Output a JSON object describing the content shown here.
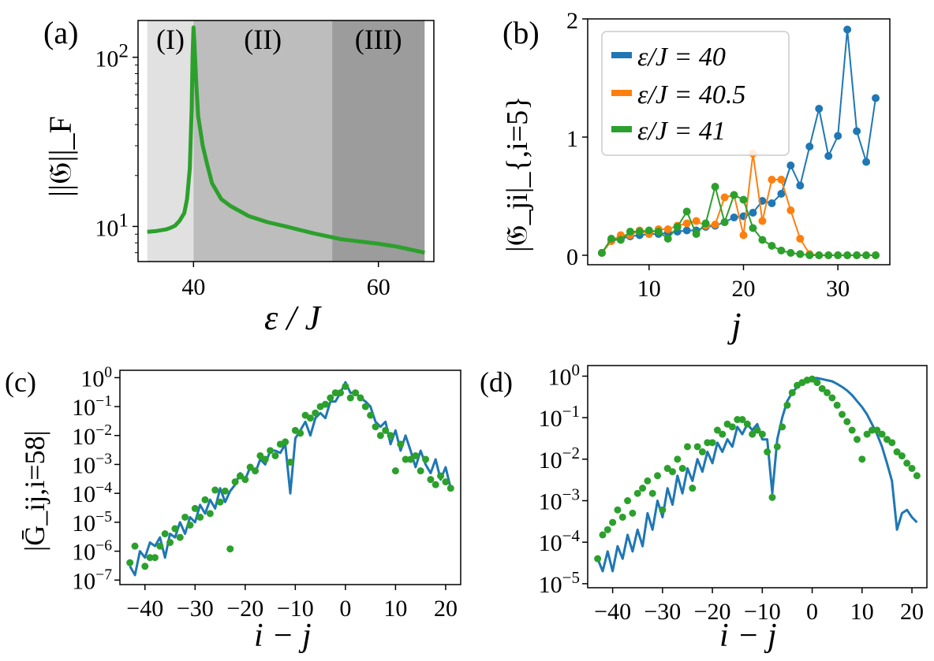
{
  "figure": {
    "panel_labels": [
      "(a)",
      "(b)",
      "(c)",
      "(d)"
    ]
  },
  "colors": {
    "blue": "#1f77b4",
    "orange": "#ff7f0e",
    "green": "#2ca02c"
  },
  "chart_data": [
    {
      "id": "a",
      "type": "line",
      "yscale": "log",
      "xlabel": "ε / J",
      "ylabel": "||𝔊||_F",
      "xlim": [
        34,
        66
      ],
      "ylim": [
        6.2,
        165
      ],
      "x_ticks": [
        40,
        60
      ],
      "x_tick_labels": [
        "40",
        "60"
      ],
      "y_ticks": [
        10,
        100
      ],
      "y_tick_labels": [
        "10^1",
        "10^2"
      ],
      "regions": [
        {
          "label": "(I)",
          "x": [
            35,
            40
          ],
          "shade": "#e1e1e1"
        },
        {
          "label": "(II)",
          "x": [
            40,
            55
          ],
          "shade": "#bdbdbd"
        },
        {
          "label": "(III)",
          "x": [
            55,
            65
          ],
          "shade": "#9c9c9c"
        }
      ],
      "series": [
        {
          "name": "||G||_F",
          "color": "#2ca02c",
          "x": [
            35,
            36,
            37,
            37.5,
            38,
            38.5,
            39,
            39.3,
            39.6,
            39.8,
            39.9,
            40.0,
            40.1,
            40.3,
            40.5,
            41,
            41.5,
            42,
            43,
            44,
            46,
            48,
            50,
            53,
            56,
            60,
            62,
            65
          ],
          "y": [
            9.3,
            9.4,
            9.6,
            9.8,
            10.1,
            10.8,
            12.0,
            14.5,
            22,
            50,
            100,
            150,
            120,
            70,
            45,
            30,
            23,
            18,
            14.5,
            13.2,
            11.5,
            10.6,
            10.0,
            9.1,
            8.4,
            7.9,
            7.6,
            7.0
          ]
        }
      ]
    },
    {
      "id": "b",
      "type": "line",
      "xlabel": "j",
      "ylabel": "|𝔊_ji|_{,i=5}",
      "xlim": [
        3.5,
        35.5
      ],
      "ylim": [
        -0.08,
        2.0
      ],
      "x_ticks": [
        10,
        20,
        30
      ],
      "x_tick_labels": [
        "10",
        "20",
        "30"
      ],
      "y_ticks": [
        0,
        1,
        2
      ],
      "y_tick_labels": [
        "0",
        "1",
        "2"
      ],
      "legend_position": "top-left",
      "x": [
        5,
        6,
        7,
        8,
        9,
        10,
        11,
        12,
        13,
        14,
        15,
        16,
        17,
        18,
        19,
        20,
        21,
        22,
        23,
        24,
        25,
        26,
        27,
        28,
        29,
        30,
        31,
        32,
        33,
        34
      ],
      "series": [
        {
          "name": "ε/J = 40",
          "legend": "ε/J = 40",
          "color": "#1f77b4",
          "values": [
            0.02,
            0.12,
            0.14,
            0.16,
            0.17,
            0.18,
            0.18,
            0.19,
            0.2,
            0.21,
            0.21,
            0.24,
            0.25,
            0.28,
            0.32,
            0.33,
            0.36,
            0.46,
            0.44,
            0.52,
            0.76,
            0.59,
            0.92,
            1.24,
            0.84,
            1.01,
            1.91,
            1.05,
            0.79,
            1.33
          ]
        },
        {
          "name": "ε/J = 40.5",
          "legend": "ε/J = 40.5",
          "color": "#ff7f0e",
          "values": [
            0.02,
            0.12,
            0.17,
            0.17,
            0.21,
            0.18,
            0.22,
            0.22,
            0.25,
            0.27,
            0.29,
            0.25,
            0.26,
            0.49,
            0.51,
            0.17,
            0.86,
            0.29,
            0.64,
            0.64,
            0.38,
            0.14,
            0.01,
            0.0,
            0.0,
            0.0,
            0.0,
            0.0,
            0.0,
            0.0
          ]
        },
        {
          "name": "ε/J = 41",
          "legend": "ε/J = 41",
          "color": "#2ca02c",
          "values": [
            0.02,
            0.14,
            0.13,
            0.2,
            0.2,
            0.21,
            0.2,
            0.14,
            0.24,
            0.37,
            0.18,
            0.27,
            0.58,
            0.28,
            0.51,
            0.47,
            0.23,
            0.13,
            0.08,
            0.04,
            0.02,
            0.01,
            0.0,
            0.0,
            0.0,
            0.0,
            0.0,
            0.0,
            0.0,
            0.0
          ]
        }
      ]
    },
    {
      "id": "c",
      "type": "line",
      "yscale": "log",
      "xlabel": "i − j",
      "ylabel": "|Ḡ_ij,i=58|",
      "xlim": [
        -45,
        23
      ],
      "ylim": [
        7e-08,
        1.8
      ],
      "x_ticks": [
        -40,
        -30,
        -20,
        -10,
        0,
        10,
        20
      ],
      "x_tick_labels": [
        "−40",
        "−30",
        "−20",
        "−10",
        "0",
        "10",
        "20"
      ],
      "y_tick_labels": [
        "10^-7",
        "10^-6",
        "10^-5",
        "10^-4",
        "10^-3",
        "10^-2",
        "10^-1",
        "10^0"
      ],
      "series": [
        {
          "name": "line",
          "color": "#1f77b4",
          "style": "line",
          "x": [
            -43,
            -42,
            -41,
            -40,
            -39,
            -38,
            -37,
            -36,
            -35,
            -34,
            -33,
            -32,
            -31,
            -30,
            -29,
            -28,
            -27,
            -26,
            -25,
            -24,
            -23,
            -22,
            -21,
            -20,
            -19,
            -18,
            -17,
            -16,
            -15,
            -14,
            -13,
            -12,
            -11,
            -10,
            -9,
            -8,
            -7,
            -6,
            -5,
            -4,
            -3,
            -2,
            -1,
            0,
            1,
            2,
            3,
            4,
            5,
            6,
            7,
            8,
            9,
            10,
            11,
            12,
            13,
            14,
            15,
            16,
            17,
            18,
            19,
            20,
            21
          ],
          "y": [
            3e-07,
            1.5e-07,
            1e-06,
            6e-07,
            2e-06,
            1.5e-06,
            3e-06,
            6e-07,
            4e-06,
            3e-06,
            1e-05,
            4e-06,
            1.5e-05,
            1e-05,
            4e-05,
            2e-05,
            6e-05,
            3e-05,
            0.00015,
            5e-05,
            0.00012,
            0.0002,
            0.0005,
            0.0003,
            0.0008,
            0.0005,
            0.0015,
            0.001,
            0.003,
            0.003,
            0.0025,
            0.005,
            0.0001,
            0.008,
            0.015,
            0.03,
            0.01,
            0.04,
            0.06,
            0.04,
            0.15,
            0.15,
            0.3,
            0.7,
            0.3,
            0.3,
            0.2,
            0.15,
            0.1,
            0.03,
            0.02,
            0.03,
            0.005,
            0.015,
            0.003,
            0.01,
            0.003,
            0.0008,
            0.003,
            0.001,
            0.0005,
            0.0015,
            0.0003,
            0.0008,
            0.00015
          ]
        },
        {
          "name": "dots",
          "color": "#2ca02c",
          "style": "markers",
          "x": [
            -43,
            -42,
            -40,
            -39,
            -38,
            -37,
            -36,
            -35,
            -34,
            -33,
            -32,
            -31,
            -30,
            -29,
            -28,
            -27,
            -26,
            -25,
            -24,
            -23,
            -22,
            -21,
            -20,
            -19,
            -18,
            -17,
            -16,
            -15,
            -14,
            -13,
            -12,
            -11,
            -10,
            -9,
            -8,
            -7,
            -6,
            -5,
            -4,
            -3,
            -2,
            -1,
            0,
            1,
            2,
            3,
            4,
            5,
            6,
            7,
            8,
            9,
            10,
            11,
            12,
            13,
            14,
            15,
            16,
            17,
            18,
            19,
            20,
            21
          ],
          "y": [
            4e-07,
            1.5e-06,
            3e-07,
            6e-07,
            6e-07,
            1.5e-06,
            4e-06,
            2e-06,
            6e-06,
            3e-06,
            1.5e-05,
            8e-06,
            3e-05,
            1.5e-05,
            6e-05,
            2e-05,
            0.00013,
            5e-05,
            0.00012,
            1.2e-06,
            0.00025,
            0.0004,
            0.0003,
            0.0008,
            0.0006,
            0.002,
            0.0015,
            0.003,
            0.002,
            0.005,
            0.006,
            0.0012,
            0.015,
            0.012,
            0.05,
            0.04,
            0.06,
            0.1,
            0.12,
            0.2,
            0.3,
            0.3,
            0.5,
            0.2,
            0.3,
            0.2,
            0.1,
            0.05,
            0.02,
            0.01,
            0.015,
            0.01,
            0.0006,
            0.005,
            0.0015,
            0.0015,
            0.002,
            0.0006,
            0.0015,
            0.0003,
            0.0002,
            0.0004,
            0.00025,
            0.00015
          ]
        }
      ]
    },
    {
      "id": "d",
      "type": "line",
      "yscale": "log",
      "xlabel": "i − j",
      "ylabel": "",
      "xlim": [
        -45,
        23
      ],
      "ylim": [
        8e-06,
        1.8
      ],
      "x_ticks": [
        -40,
        -30,
        -20,
        -10,
        0,
        10,
        20
      ],
      "x_tick_labels": [
        "−40",
        "−30",
        "−20",
        "−10",
        "0",
        "10",
        "20"
      ],
      "y_tick_labels": [
        "10^-5",
        "10^-4",
        "10^-3",
        "10^-2",
        "10^-1",
        "10^0"
      ],
      "series": [
        {
          "name": "line",
          "color": "#1f77b4",
          "style": "line",
          "x": [
            -43,
            -42,
            -41,
            -40,
            -39,
            -38,
            -37,
            -36,
            -35,
            -34,
            -33,
            -32,
            -31,
            -30,
            -29,
            -28,
            -27,
            -26,
            -25,
            -24,
            -23,
            -22,
            -21,
            -20,
            -19,
            -18,
            -17,
            -16,
            -15,
            -14,
            -13,
            -12,
            -11,
            -10,
            -9,
            -8,
            -7,
            -6,
            -5,
            -4,
            -3,
            -2,
            -1,
            0,
            1,
            2,
            3,
            4,
            5,
            6,
            7,
            8,
            9,
            10,
            11,
            12,
            13,
            14,
            15,
            16,
            17,
            18,
            19,
            20,
            21
          ],
          "y": [
            4e-05,
            2e-05,
            6e-05,
            2e-05,
            8e-05,
            4e-05,
            0.00015,
            6e-05,
            0.0002,
            8e-05,
            0.0005,
            0.0002,
            0.001,
            0.0004,
            0.002,
            0.0008,
            0.004,
            0.0015,
            0.006,
            0.003,
            0.01,
            0.005,
            0.015,
            0.008,
            0.025,
            0.015,
            0.03,
            0.02,
            0.06,
            0.04,
            0.07,
            0.05,
            0.07,
            0.03,
            0.03,
            0.0015,
            0.03,
            0.1,
            0.25,
            0.4,
            0.55,
            0.7,
            0.8,
            0.9,
            0.9,
            0.85,
            0.8,
            0.75,
            0.65,
            0.55,
            0.45,
            0.35,
            0.25,
            0.18,
            0.12,
            0.07,
            0.04,
            0.02,
            0.008,
            0.003,
            0.0002,
            0.0005,
            0.0006,
            0.0004,
            0.0003
          ]
        },
        {
          "name": "dots",
          "color": "#2ca02c",
          "style": "markers",
          "x": [
            -43,
            -42,
            -41,
            -40,
            -39,
            -38,
            -37,
            -36,
            -35,
            -34,
            -33,
            -32,
            -31,
            -30,
            -29,
            -28,
            -27,
            -26,
            -25,
            -24,
            -23,
            -22,
            -21,
            -20,
            -19,
            -18,
            -17,
            -16,
            -15,
            -14,
            -13,
            -12,
            -11,
            -10,
            -9,
            -8,
            -7,
            -6,
            -5,
            -4,
            -3,
            -2,
            -1,
            0,
            1,
            2,
            3,
            4,
            5,
            6,
            7,
            8,
            9,
            10,
            11,
            12,
            13,
            14,
            15,
            16,
            17,
            18,
            19,
            20,
            21
          ],
          "y": [
            4e-05,
            0.00015,
            0.0002,
            0.0003,
            0.0006,
            0.0004,
            0.001,
            0.0005,
            0.0015,
            0.002,
            0.003,
            0.0015,
            0.004,
            0.0006,
            0.006,
            0.005,
            0.01,
            0.006,
            0.02,
            0.002,
            0.02,
            0.015,
            0.025,
            0.025,
            0.05,
            0.04,
            0.07,
            0.06,
            0.09,
            0.09,
            0.07,
            0.04,
            0.05,
            0.04,
            0.015,
            0.0012,
            0.02,
            0.06,
            0.2,
            0.4,
            0.6,
            0.7,
            0.8,
            0.85,
            0.7,
            0.5,
            0.4,
            0.3,
            0.2,
            0.12,
            0.08,
            0.05,
            0.03,
            0.01,
            0.04,
            0.05,
            0.05,
            0.04,
            0.03,
            0.025,
            0.015,
            0.012,
            0.008,
            0.006,
            0.004
          ]
        }
      ]
    }
  ]
}
